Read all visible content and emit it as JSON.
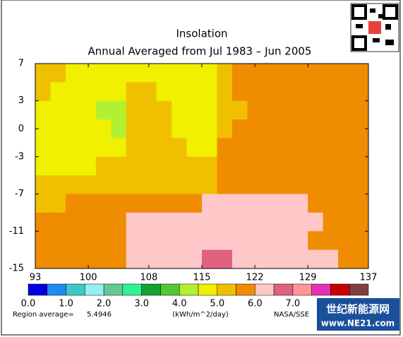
{
  "chart_data": {
    "type": "heatmap",
    "title": "Insolation",
    "subtitle": "Annual Averaged from Jul 1983 – Jun 2005",
    "xlim": [
      93,
      137
    ],
    "ylim": [
      -15,
      7
    ],
    "xticks": [
      93,
      100,
      108,
      115,
      122,
      129,
      137
    ],
    "yticks": [
      7,
      3,
      0,
      -3,
      -7,
      -11,
      -15
    ],
    "values": [
      [
        5.2,
        5.2,
        4.8,
        4.8,
        4.8,
        4.8,
        4.8,
        4.8,
        4.8,
        4.8,
        4.8,
        4.8,
        5.2,
        5.8,
        5.8,
        5.8,
        5.8,
        5.8,
        5.8,
        5.8,
        5.8,
        5.8
      ],
      [
        5.2,
        4.8,
        4.8,
        4.8,
        4.8,
        4.8,
        5.2,
        5.2,
        4.8,
        4.8,
        4.8,
        4.8,
        5.2,
        5.8,
        5.8,
        5.8,
        5.8,
        5.8,
        5.8,
        5.8,
        5.8,
        5.8
      ],
      [
        4.8,
        4.8,
        4.8,
        4.8,
        4.3,
        4.3,
        5.2,
        5.2,
        5.2,
        4.8,
        4.8,
        4.8,
        5.2,
        5.2,
        5.8,
        5.8,
        5.8,
        5.8,
        5.8,
        5.8,
        5.8,
        5.8
      ],
      [
        4.8,
        4.8,
        4.8,
        4.8,
        4.8,
        4.3,
        5.2,
        5.2,
        5.2,
        4.8,
        4.8,
        4.8,
        5.2,
        5.8,
        5.8,
        5.8,
        5.8,
        5.8,
        5.8,
        5.8,
        5.8,
        5.8
      ],
      [
        4.8,
        4.8,
        4.8,
        4.8,
        4.8,
        4.8,
        5.2,
        5.2,
        5.2,
        5.2,
        4.8,
        4.8,
        5.8,
        5.8,
        5.8,
        5.8,
        5.8,
        5.8,
        5.8,
        5.8,
        5.8,
        5.8
      ],
      [
        4.8,
        4.8,
        4.8,
        4.8,
        5.2,
        5.2,
        5.2,
        5.2,
        5.2,
        5.2,
        5.2,
        5.2,
        5.8,
        5.8,
        5.8,
        5.8,
        5.8,
        5.8,
        5.8,
        5.8,
        5.8,
        5.8
      ],
      [
        5.2,
        5.2,
        5.2,
        5.2,
        5.2,
        5.2,
        5.2,
        5.2,
        5.2,
        5.2,
        5.2,
        5.2,
        5.8,
        5.8,
        5.8,
        5.8,
        5.8,
        5.8,
        5.8,
        5.8,
        5.8,
        5.8
      ],
      [
        5.2,
        5.2,
        5.8,
        5.8,
        5.8,
        5.8,
        5.8,
        5.8,
        5.8,
        5.8,
        5.8,
        6.2,
        6.2,
        6.2,
        6.2,
        6.2,
        6.2,
        6.2,
        5.8,
        5.8,
        5.8,
        5.8
      ],
      [
        5.8,
        5.8,
        5.8,
        5.8,
        5.8,
        5.8,
        6.2,
        6.2,
        6.2,
        6.2,
        6.2,
        6.2,
        6.2,
        6.2,
        6.2,
        6.2,
        6.2,
        6.2,
        6.2,
        5.8,
        5.8,
        5.8
      ],
      [
        5.8,
        5.8,
        5.8,
        5.8,
        5.8,
        5.8,
        6.2,
        6.2,
        6.2,
        6.2,
        6.2,
        6.2,
        6.2,
        6.2,
        6.2,
        6.2,
        6.2,
        6.2,
        5.8,
        5.8,
        5.8,
        5.8
      ],
      [
        5.8,
        5.8,
        5.8,
        5.8,
        5.8,
        5.8,
        6.2,
        6.2,
        6.2,
        6.2,
        6.2,
        6.7,
        6.7,
        6.2,
        6.2,
        6.2,
        6.2,
        6.2,
        6.2,
        6.2,
        5.8,
        5.8
      ]
    ],
    "colorbar": {
      "levels": [
        0,
        0.5,
        1,
        1.5,
        2,
        2.5,
        3,
        3.5,
        4,
        4.5,
        5,
        5.5,
        6,
        6.5,
        7,
        7.5,
        8,
        8.5,
        9
      ],
      "colors": [
        "#0000e0",
        "#1e8cf0",
        "#3cc8c8",
        "#96f0f0",
        "#64c896",
        "#32f096",
        "#14a032",
        "#50c832",
        "#b4f032",
        "#f0f000",
        "#f0c000",
        "#f08c00",
        "#ffc8c8",
        "#e06080",
        "#ff9696",
        "#e632b4",
        "#c80000",
        "#804040"
      ],
      "ticks": [
        {
          "value": 0,
          "label": "0.0"
        },
        {
          "value": 1,
          "label": "1.0"
        },
        {
          "value": 2,
          "label": "2.0"
        },
        {
          "value": 3,
          "label": "3.0"
        },
        {
          "value": 4,
          "label": "4.0"
        },
        {
          "value": 5,
          "label": "5.0"
        },
        {
          "value": 6,
          "label": "6.0"
        },
        {
          "value": 7,
          "label": "7.0"
        }
      ],
      "unit": "(kWh/m^2/day)"
    },
    "region_average_label": "Region average=",
    "region_average": 5.4946,
    "source": "NASA/SSE"
  },
  "watermark": {
    "name": "世纪新能源网",
    "url": "www.NE21.com"
  }
}
